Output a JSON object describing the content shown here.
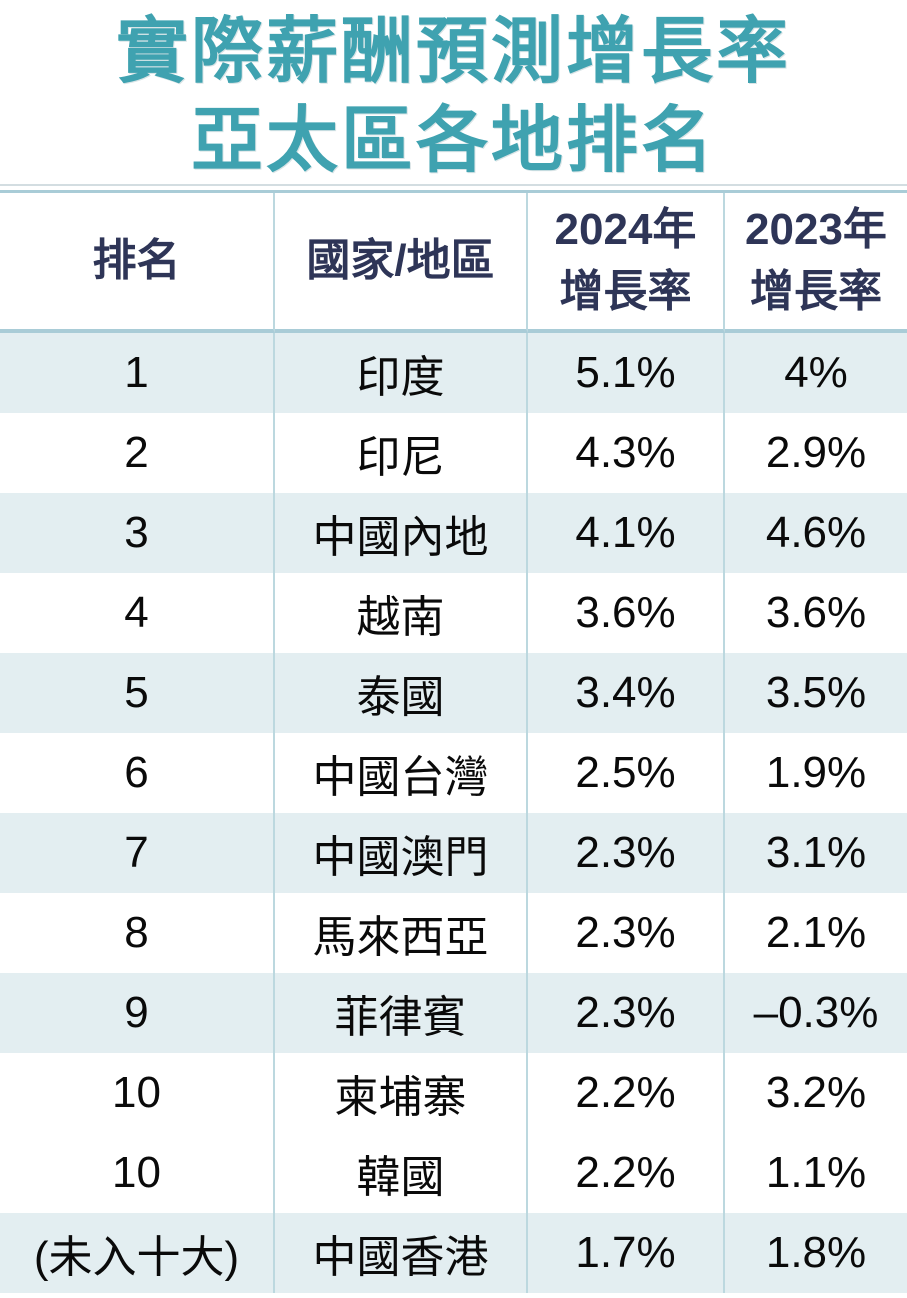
{
  "title": {
    "line1": "實際薪酬預測增長率",
    "line2": "亞太區各地排名"
  },
  "table": {
    "headers": {
      "rank": "排名",
      "region": "國家/地區",
      "y2024_line1": "2024年",
      "y2024_line2": "增長率",
      "y2023_line1": "2023年",
      "y2023_line2": "增長率"
    },
    "rows": [
      {
        "rank": "1",
        "region": "印度",
        "y2024": "5.1%",
        "y2023": "4%"
      },
      {
        "rank": "2",
        "region": "印尼",
        "y2024": "4.3%",
        "y2023": "2.9%"
      },
      {
        "rank": "3",
        "region": "中國內地",
        "y2024": "4.1%",
        "y2023": "4.6%"
      },
      {
        "rank": "4",
        "region": "越南",
        "y2024": "3.6%",
        "y2023": "3.6%"
      },
      {
        "rank": "5",
        "region": "泰國",
        "y2024": "3.4%",
        "y2023": "3.5%"
      },
      {
        "rank": "6",
        "region": "中國台灣",
        "y2024": "2.5%",
        "y2023": "1.9%"
      },
      {
        "rank": "7",
        "region": "中國澳門",
        "y2024": "2.3%",
        "y2023": "3.1%"
      },
      {
        "rank": "8",
        "region": "馬來西亞",
        "y2024": "2.3%",
        "y2023": "2.1%"
      },
      {
        "rank": "9",
        "region": "菲律賓",
        "y2024": "2.3%",
        "y2023": "–0.3%"
      },
      {
        "rank": "10",
        "region": "柬埔寨",
        "y2024": "2.2%",
        "y2023": "3.2%"
      },
      {
        "rank": "10",
        "region": "韓國",
        "y2024": "2.2%",
        "y2023": "1.1%"
      },
      {
        "rank": "(未入十大)",
        "region": "中國香港",
        "y2024": "1.7%",
        "y2023": "1.8%"
      }
    ],
    "shaded_row_indices": [
      0,
      2,
      4,
      6,
      8,
      11
    ]
  },
  "colors": {
    "title_teal": "#3fa2b0",
    "header_navy": "#2e3557",
    "row_shade": "#e3eef1",
    "border_teal": "#bcd8df",
    "rule_top": "#d3dde1",
    "rule_bottom": "#a9ccd7",
    "row_text": "#0a0a0a"
  },
  "chart_data": {
    "type": "table",
    "title": "實際薪酬預測增長率 亞太區各地排名",
    "columns": [
      "排名",
      "國家/地區",
      "2024年增長率",
      "2023年增長率"
    ],
    "rows": [
      [
        "1",
        "印度",
        "5.1%",
        "4%"
      ],
      [
        "2",
        "印尼",
        "4.3%",
        "2.9%"
      ],
      [
        "3",
        "中國內地",
        "4.1%",
        "4.6%"
      ],
      [
        "4",
        "越南",
        "3.6%",
        "3.6%"
      ],
      [
        "5",
        "泰國",
        "3.4%",
        "3.5%"
      ],
      [
        "6",
        "中國台灣",
        "2.5%",
        "1.9%"
      ],
      [
        "7",
        "中國澳門",
        "2.3%",
        "3.1%"
      ],
      [
        "8",
        "馬來西亞",
        "2.3%",
        "2.1%"
      ],
      [
        "9",
        "菲律賓",
        "2.3%",
        "-0.3%"
      ],
      [
        "10",
        "柬埔寨",
        "2.2%",
        "3.2%"
      ],
      [
        "10",
        "韓國",
        "2.2%",
        "1.1%"
      ],
      [
        "(未入十大)",
        "中國香港",
        "1.7%",
        "1.8%"
      ]
    ],
    "values_2024": [
      5.1,
      4.3,
      4.1,
      3.6,
      3.4,
      2.5,
      2.3,
      2.3,
      2.3,
      2.2,
      2.2,
      1.7
    ],
    "values_2023": [
      4.0,
      2.9,
      4.6,
      3.6,
      3.5,
      1.9,
      3.1,
      2.1,
      -0.3,
      3.2,
      1.1,
      1.8
    ]
  }
}
